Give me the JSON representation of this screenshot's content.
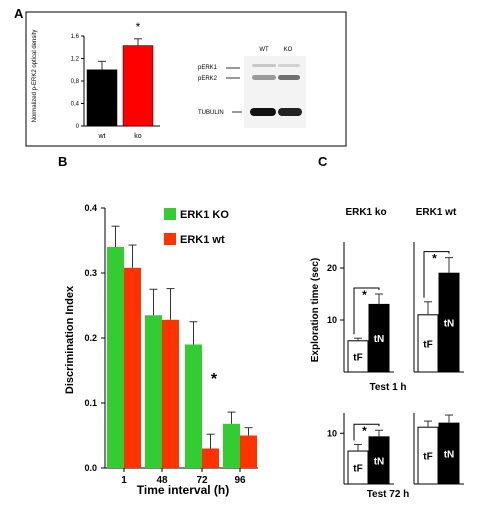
{
  "colors": {
    "red": "#ff0000",
    "green": "#33cc33",
    "red_orange": "#ff3300",
    "black": "#000000",
    "white": "#ffffff"
  },
  "panels": {
    "a": "A",
    "b": "B",
    "c": "C"
  },
  "chart_data": [
    {
      "id": "A",
      "type": "bar",
      "ylabel": "Normalized p-ERK2 optical density",
      "ylim": [
        0,
        1.6
      ],
      "yticks": [
        "0",
        "0,4",
        "0,8",
        "1,2",
        "1,6"
      ],
      "categories": [
        "wt",
        "ko"
      ],
      "values": [
        1.0,
        1.43
      ],
      "errors": [
        0.15,
        0.12
      ],
      "bar_colors": [
        "#000000",
        "#ff0000"
      ],
      "annotations": [
        "*"
      ]
    },
    {
      "id": "A-blot",
      "type": "image",
      "columns": [
        "WT",
        "KO"
      ],
      "row_labels": [
        "pERK1",
        "pERK2",
        "TUBULIN"
      ]
    },
    {
      "id": "B",
      "type": "bar",
      "xlabel": "Time interval (h)",
      "ylabel": "Discrimination Index",
      "ylim": [
        0,
        0.4
      ],
      "yticks": [
        "0.0",
        "0.1",
        "0.2",
        "0.3",
        "0.4"
      ],
      "categories": [
        "1",
        "48",
        "72",
        "96"
      ],
      "series": [
        {
          "name": "ERK1 KO",
          "color": "#33cc33",
          "values": [
            0.34,
            0.235,
            0.19,
            0.068
          ],
          "errors": [
            0.032,
            0.04,
            0.035,
            0.018
          ]
        },
        {
          "name": "ERK1 wt",
          "color": "#ff3300",
          "values": [
            0.308,
            0.228,
            0.03,
            0.05
          ],
          "errors": [
            0.035,
            0.048,
            0.022,
            0.012
          ]
        }
      ],
      "annotations": [
        "*"
      ],
      "legend": "top-right"
    },
    {
      "id": "C",
      "type": "bar",
      "ylabel": "Exploration time (sec)",
      "column_titles": [
        "ERK1 ko",
        "ERK1 wt"
      ],
      "row_titles": [
        "Test 1 h",
        "Test 72 h"
      ],
      "bar_labels": [
        "tF",
        "tN"
      ],
      "panels": [
        {
          "test": "Test 1 h",
          "group": "ERK1 ko",
          "yticks": [
            "10",
            "20"
          ],
          "ylim": [
            0,
            25
          ],
          "values": [
            6,
            13
          ],
          "errors": [
            0.5,
            2
          ],
          "significant": true
        },
        {
          "test": "Test 1 h",
          "group": "ERK1 wt",
          "yticks": [],
          "ylim": [
            0,
            25
          ],
          "values": [
            11,
            19
          ],
          "errors": [
            2.5,
            3
          ],
          "significant": true
        },
        {
          "test": "Test 72 h",
          "group": "ERK1 ko",
          "yticks": [
            "10"
          ],
          "ylim": [
            0,
            14
          ],
          "values": [
            6.5,
            9.3
          ],
          "errors": [
            1.3,
            1.3
          ],
          "significant": true
        },
        {
          "test": "Test 72 h",
          "group": "ERK1 wt",
          "yticks": [],
          "ylim": [
            0,
            14
          ],
          "values": [
            11.2,
            12
          ],
          "errors": [
            1.2,
            1.6
          ],
          "significant": false
        }
      ],
      "annotations": [
        "*"
      ]
    }
  ]
}
